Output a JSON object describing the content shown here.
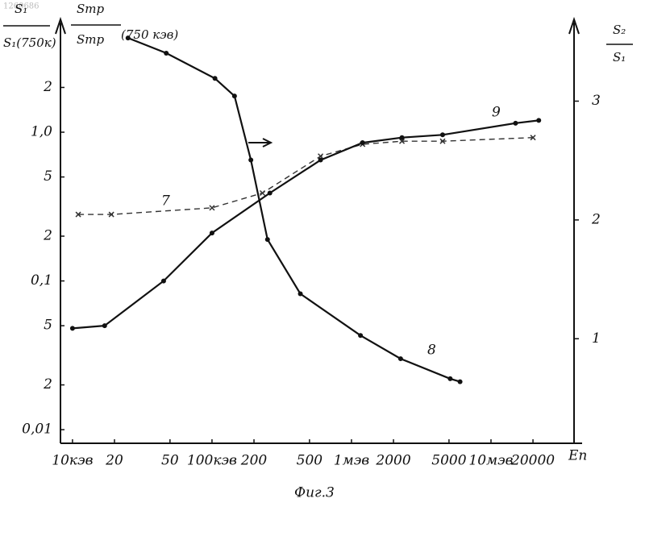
{
  "doc_number": "1260686",
  "chart_data": {
    "type": "line",
    "caption": "Фиг.3",
    "x_label": "Eп",
    "y_label_lines": [
      "S₁",
      "S₁(750к)",
      "Sтр",
      "Sтр",
      "(750 кэв)"
    ],
    "y2_label_lines": [
      "S₂",
      "S₁"
    ],
    "log_x": true,
    "log_y": true,
    "grid": false,
    "xlim": [
      8.2,
      45000
    ],
    "ylim": [
      0.0081,
      4.7
    ],
    "y2lim": [
      0.12,
      3.58
    ],
    "xticks": [
      {
        "value": 10,
        "label": "10кэв"
      },
      20,
      50,
      {
        "value": 100,
        "label": "100кэв"
      },
      200,
      500,
      {
        "value": 1000,
        "label": "1мэв"
      },
      2000,
      5000,
      {
        "value": 10000,
        "label": "10мэв"
      },
      20000
    ],
    "yticks": [
      {
        "value": 0.01,
        "label": "0,01"
      },
      {
        "value": 0.02,
        "label": "2"
      },
      {
        "value": 0.05,
        "label": "5"
      },
      {
        "value": 0.1,
        "label": "0,1"
      },
      {
        "value": 0.2,
        "label": "2"
      },
      {
        "value": 0.5,
        "label": "5"
      },
      {
        "value": 1,
        "label": "1,0"
      },
      2
    ],
    "y2ticks": [
      1,
      2,
      3
    ],
    "series": [
      {
        "name": "7",
        "color": "#333",
        "dashed": true,
        "marker": "x",
        "x": [
          11,
          19,
          100,
          230,
          600,
          1200,
          2300,
          4500,
          20000
        ],
        "values": [
          0.28,
          0.28,
          0.31,
          0.39,
          0.69,
          0.83,
          0.87,
          0.87,
          0.92
        ]
      },
      {
        "name": "8",
        "color": "#111",
        "dashed": false,
        "marker": "dot",
        "x": [
          25,
          47,
          105,
          145,
          190,
          250,
          430,
          1160,
          2250,
          5100,
          6000
        ],
        "values": [
          4.3,
          3.4,
          2.3,
          1.75,
          0.65,
          0.19,
          0.082,
          0.043,
          0.03,
          0.022,
          0.021
        ]
      },
      {
        "name": "9",
        "color": "#111",
        "dashed": false,
        "marker": "dot",
        "x": [
          10,
          17,
          45,
          100,
          260,
          600,
          1200,
          2300,
          4500,
          15000,
          22000
        ],
        "values": [
          0.048,
          0.05,
          0.1,
          0.21,
          0.39,
          0.65,
          0.85,
          0.92,
          0.96,
          1.15,
          1.2
        ]
      }
    ]
  }
}
